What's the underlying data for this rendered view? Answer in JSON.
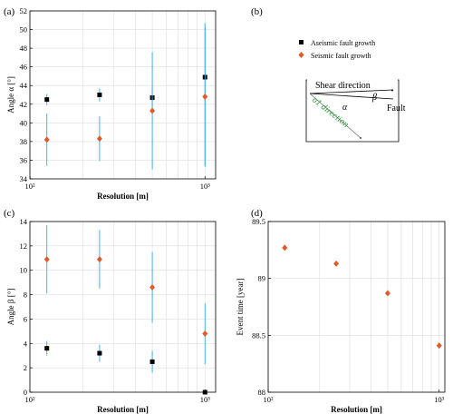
{
  "colors": {
    "aseismic": "#000000",
    "seismic": "#e05a2b",
    "errorbar": "#33aadd",
    "shear_green": "#2a9d3a",
    "grid": "#dddddd"
  },
  "panels": {
    "a": {
      "label": "(a)"
    },
    "b": {
      "label": "(b)"
    },
    "c": {
      "label": "(c)"
    },
    "d": {
      "label": "(d)"
    }
  },
  "legend": {
    "aseismic": "Aseismic fault growth",
    "seismic": "Seismic fault growth"
  },
  "diagram": {
    "shear": "Shear direction",
    "fault": "Fault",
    "alpha": "α",
    "beta": "β",
    "sigma_dir": "σ1 direction"
  },
  "chart_data": [
    {
      "id": "a",
      "type": "scatter",
      "xlabel": "Resolution [m]",
      "ylabel": "Angle α [°]",
      "xscale": "log",
      "xlim": [
        100,
        1150
      ],
      "ylim": [
        34,
        52
      ],
      "yticks": [
        34,
        36,
        38,
        40,
        42,
        44,
        46,
        48,
        50,
        52
      ],
      "xtick_labels": [
        "10²",
        "10³"
      ],
      "grid": true,
      "series": [
        {
          "name": "Aseismic fault growth",
          "marker": "square",
          "x": [
            125,
            250,
            500,
            1000
          ],
          "y": [
            42.5,
            43.0,
            42.7,
            44.9
          ],
          "err_low": [
            0.6,
            0.7,
            1.0,
            9.5
          ],
          "err_high": [
            0.6,
            0.7,
            1.0,
            5.8
          ]
        },
        {
          "name": "Seismic fault growth",
          "marker": "diamond",
          "x": [
            125,
            250,
            500,
            1000
          ],
          "y": [
            38.2,
            38.3,
            41.3,
            42.8
          ],
          "err_low": [
            2.8,
            2.4,
            6.3,
            7.5
          ],
          "err_high": [
            2.8,
            2.4,
            6.3,
            7.5
          ]
        }
      ]
    },
    {
      "id": "c",
      "type": "scatter",
      "xlabel": "Resolution [m]",
      "ylabel": "Angle β [°]",
      "xscale": "log",
      "xlim": [
        100,
        1150
      ],
      "ylim": [
        0,
        14
      ],
      "yticks": [
        0,
        2,
        4,
        6,
        8,
        10,
        12,
        14
      ],
      "xtick_labels": [
        "10²",
        "10³"
      ],
      "grid": true,
      "series": [
        {
          "name": "Aseismic fault growth",
          "marker": "square",
          "x": [
            125,
            250,
            500,
            1000
          ],
          "y": [
            3.6,
            3.2,
            2.5,
            0.0
          ],
          "err_low": [
            0.6,
            0.7,
            0.9,
            0
          ],
          "err_high": [
            0.6,
            0.7,
            0.9,
            0
          ]
        },
        {
          "name": "Seismic fault growth",
          "marker": "diamond",
          "x": [
            125,
            250,
            500,
            1000
          ],
          "y": [
            10.9,
            10.9,
            8.6,
            4.8
          ],
          "err_low": [
            2.8,
            2.4,
            2.9,
            2.5
          ],
          "err_high": [
            2.8,
            2.4,
            2.9,
            2.5
          ]
        }
      ]
    },
    {
      "id": "d",
      "type": "scatter",
      "xlabel": "Resolution [m]",
      "ylabel": "Event time [year]",
      "xscale": "log",
      "xlim": [
        100,
        1080
      ],
      "ylim": [
        88,
        89.5
      ],
      "yticks": [
        88,
        88.5,
        89,
        89.5
      ],
      "xtick_labels": [
        "10²",
        "10³"
      ],
      "grid": true,
      "series": [
        {
          "name": "Seismic fault growth",
          "marker": "diamond",
          "x": [
            125,
            250,
            500,
            1000
          ],
          "y": [
            89.27,
            89.13,
            88.87,
            88.41
          ]
        }
      ]
    }
  ]
}
